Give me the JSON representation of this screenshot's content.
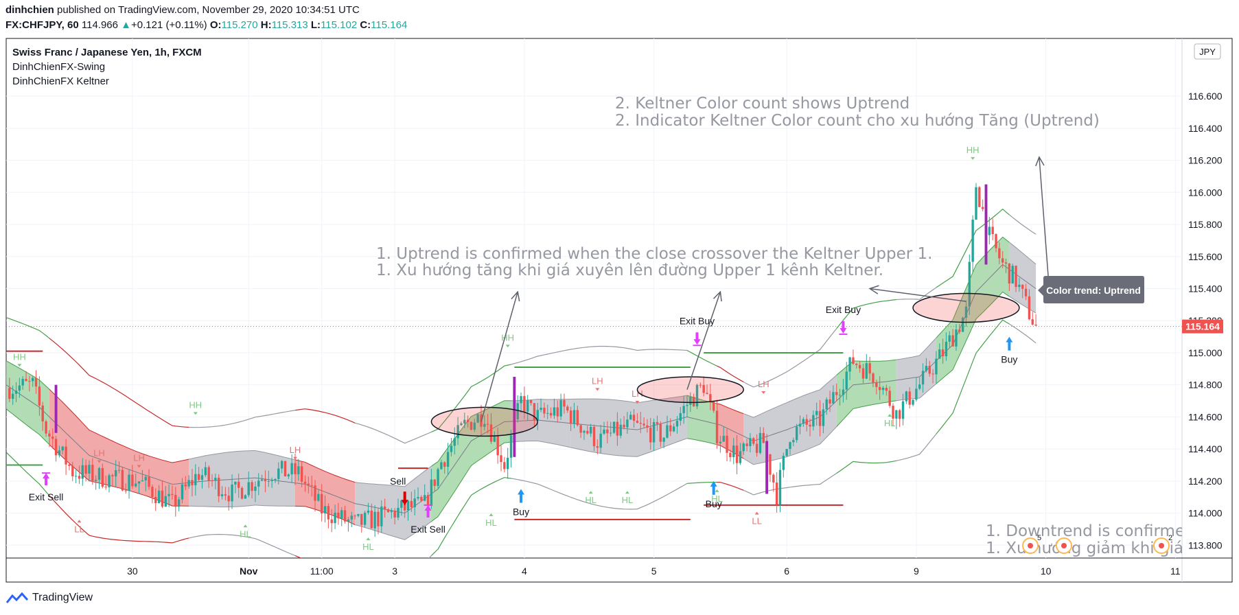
{
  "header": {
    "author": "dinhchien",
    "published": "published on TradingView.com, November 29, 2020 10:34:51 UTC",
    "symbol": "FX:CHFJPY, 60",
    "last": "114.966",
    "change_arrow": "▲",
    "change": "+0.121 (+0.11%)",
    "o_label": "O:",
    "o_val": "115.270",
    "h_label": "H:",
    "h_val": "115.313",
    "l_label": "L:",
    "l_val": "115.102",
    "c_label": "C:",
    "c_val": "115.164"
  },
  "legend": {
    "title": "Swiss Franc / Japanese Yen, 1h, FXCM",
    "ind1": "DinhChienFX-Swing",
    "ind2": "DinhChienFX Keltner"
  },
  "currency_badge": "JPY",
  "price_badge": "115.164",
  "tooltip": "Color trend: Uptrend",
  "annotations": {
    "a1_line1": "1. Uptrend is confirmed when the close crossover the Keltner Upper 1.",
    "a1_line2": "1. Xu hướng tăng khi giá xuyên lên đường Upper 1 kênh Keltner.",
    "a2_line1": "2. Keltner Color count shows Uptrend",
    "a2_line2": "2. Indicator Keltner Color count cho xu hướng Tăng (Uptrend)",
    "a3_line1": "1. Downtrend is confirme",
    "a3_line2": "1. Xu hướng giảm khi giá"
  },
  "footer": {
    "brand": "TradingView"
  },
  "colors": {
    "up": "#26a69a",
    "down": "#ef5350",
    "bull_fill": "#a5d6a7",
    "bear_fill": "#ef9a9a",
    "neutral_fill": "#c4c6cc",
    "keltner_mid": "#787b86",
    "signal": "#e040fb",
    "buy_arrow": "#2196f3",
    "exit_sell_arrow": "#e91e63",
    "level_green": "#43a047",
    "level_red": "#c62828"
  },
  "chart_data": {
    "type": "candlestick",
    "ylim": [
      113.72,
      116.96
    ],
    "y_ticks": [
      "113.800",
      "114.000",
      "114.200",
      "114.400",
      "114.600",
      "114.800",
      "115.000",
      "115.200",
      "115.400",
      "115.600",
      "115.800",
      "116.000",
      "116.200",
      "116.400",
      "116.600"
    ],
    "x_ticks": [
      {
        "label": "30",
        "bar": 38
      },
      {
        "label": "Nov",
        "bar": 73
      },
      {
        "label": "11:00",
        "bar": 95
      },
      {
        "label": "3",
        "bar": 117
      },
      {
        "label": "4",
        "bar": 156
      },
      {
        "label": "5",
        "bar": 195
      },
      {
        "label": "6",
        "bar": 235
      },
      {
        "label": "9",
        "bar": 274
      },
      {
        "label": "10",
        "bar": 313
      },
      {
        "label": "11",
        "bar": 352
      }
    ],
    "xlim": [
      0,
      354
    ],
    "bars": 310,
    "close_path": [
      [
        0,
        114.78
      ],
      [
        8,
        114.8
      ],
      [
        12,
        114.52
      ],
      [
        20,
        114.26
      ],
      [
        30,
        114.22
      ],
      [
        40,
        114.2
      ],
      [
        50,
        114.05
      ],
      [
        58,
        114.25
      ],
      [
        68,
        114.12
      ],
      [
        80,
        114.26
      ],
      [
        88,
        114.25
      ],
      [
        95,
        114.02
      ],
      [
        105,
        113.93
      ],
      [
        112,
        113.97
      ],
      [
        120,
        114.03
      ],
      [
        126,
        114.05
      ],
      [
        131,
        114.32
      ],
      [
        138,
        114.55
      ],
      [
        144,
        114.62
      ],
      [
        150,
        114.3
      ],
      [
        155,
        114.7
      ],
      [
        160,
        114.6
      ],
      [
        168,
        114.65
      ],
      [
        178,
        114.45
      ],
      [
        188,
        114.55
      ],
      [
        198,
        114.48
      ],
      [
        205,
        114.68
      ],
      [
        210,
        114.8
      ],
      [
        214,
        114.5
      ],
      [
        220,
        114.36
      ],
      [
        228,
        114.44
      ],
      [
        232,
        114.12
      ],
      [
        236,
        114.5
      ],
      [
        245,
        114.58
      ],
      [
        255,
        114.95
      ],
      [
        262,
        114.85
      ],
      [
        268,
        114.62
      ],
      [
        275,
        114.8
      ],
      [
        282,
        115.0
      ],
      [
        289,
        115.25
      ],
      [
        292,
        116.05
      ],
      [
        296,
        115.72
      ],
      [
        300,
        115.55
      ],
      [
        304,
        115.45
      ],
      [
        308,
        115.25
      ],
      [
        310,
        115.16
      ]
    ],
    "keltner_mid": [
      [
        0,
        114.8
      ],
      [
        10,
        114.66
      ],
      [
        25,
        114.36
      ],
      [
        40,
        114.25
      ],
      [
        50,
        114.18
      ],
      [
        60,
        114.2
      ],
      [
        75,
        114.22
      ],
      [
        90,
        114.18
      ],
      [
        105,
        114.06
      ],
      [
        120,
        114.0
      ],
      [
        130,
        114.15
      ],
      [
        140,
        114.45
      ],
      [
        150,
        114.57
      ],
      [
        160,
        114.58
      ],
      [
        175,
        114.55
      ],
      [
        190,
        114.52
      ],
      [
        205,
        114.6
      ],
      [
        215,
        114.55
      ],
      [
        225,
        114.45
      ],
      [
        235,
        114.52
      ],
      [
        245,
        114.6
      ],
      [
        255,
        114.8
      ],
      [
        265,
        114.82
      ],
      [
        275,
        114.85
      ],
      [
        285,
        115.05
      ],
      [
        292,
        115.38
      ],
      [
        300,
        115.55
      ],
      [
        310,
        115.4
      ]
    ],
    "keltner_u1_offset": 0.15,
    "keltner_u2_offset": 0.42,
    "trend_segments": [
      {
        "from": 0,
        "to": 13,
        "trend": "bull"
      },
      {
        "from": 13,
        "to": 55,
        "trend": "bear"
      },
      {
        "from": 55,
        "to": 87,
        "trend": "neutral"
      },
      {
        "from": 87,
        "to": 105,
        "trend": "bear"
      },
      {
        "from": 105,
        "to": 128,
        "trend": "neutral"
      },
      {
        "from": 128,
        "to": 152,
        "trend": "bull"
      },
      {
        "from": 152,
        "to": 170,
        "trend": "neutral"
      },
      {
        "from": 170,
        "to": 205,
        "trend": "neutral"
      },
      {
        "from": 205,
        "to": 214,
        "trend": "bull"
      },
      {
        "from": 214,
        "to": 222,
        "trend": "bear"
      },
      {
        "from": 222,
        "to": 250,
        "trend": "neutral"
      },
      {
        "from": 250,
        "to": 268,
        "trend": "bull"
      },
      {
        "from": 268,
        "to": 280,
        "trend": "neutral"
      },
      {
        "from": 280,
        "to": 302,
        "trend": "bull"
      },
      {
        "from": 302,
        "to": 310,
        "trend": "neutral"
      }
    ],
    "swing_labels": [
      {
        "text": "HH",
        "bar": 4,
        "price": 114.93
      },
      {
        "text": "LH",
        "bar": 28,
        "price": 114.33
      },
      {
        "text": "LH",
        "bar": 40,
        "price": 114.3
      },
      {
        "text": "HH",
        "bar": 57,
        "price": 114.63
      },
      {
        "text": "LL",
        "bar": 22,
        "price": 113.95
      },
      {
        "text": "HL",
        "bar": 72,
        "price": 113.92
      },
      {
        "text": "LH",
        "bar": 87,
        "price": 114.35
      },
      {
        "text": "HL",
        "bar": 109,
        "price": 113.84
      },
      {
        "text": "HL",
        "bar": 146,
        "price": 113.99
      },
      {
        "text": "HH",
        "bar": 151,
        "price": 115.05
      },
      {
        "text": "LH",
        "bar": 178,
        "price": 114.78
      },
      {
        "text": "LH",
        "bar": 190,
        "price": 114.7
      },
      {
        "text": "HL",
        "bar": 176,
        "price": 114.13
      },
      {
        "text": "HL",
        "bar": 187,
        "price": 114.13
      },
      {
        "text": "HL",
        "bar": 214,
        "price": 114.14
      },
      {
        "text": "LL",
        "bar": 226,
        "price": 114.0
      },
      {
        "text": "LH",
        "bar": 228,
        "price": 114.76
      },
      {
        "text": "HL",
        "bar": 266,
        "price": 114.61
      },
      {
        "text": "HH",
        "bar": 291,
        "price": 116.22
      }
    ],
    "signals": [
      {
        "text": "Exit Sell",
        "bar": 12,
        "price": 114.25,
        "kind": "exit-sell",
        "label_below": true
      },
      {
        "text": "Sell",
        "bar": 120,
        "price": 114.1,
        "kind": "sell",
        "label_above": true
      },
      {
        "text": "Exit Sell",
        "bar": 127,
        "price": 114.05,
        "kind": "exit-sell",
        "label_below": true
      },
      {
        "text": "Buy",
        "bar": 155,
        "price": 114.15,
        "kind": "buy",
        "label_below": true
      },
      {
        "text": "Exit Buy",
        "bar": 208,
        "price": 115.05,
        "kind": "exit-buy",
        "label_above": true
      },
      {
        "text": "Buy",
        "bar": 213,
        "price": 114.2,
        "kind": "buy",
        "label_below": true
      },
      {
        "text": "Exit Buy",
        "bar": 252,
        "price": 115.12,
        "kind": "exit-buy",
        "label_above": true
      },
      {
        "text": "Buy",
        "bar": 302,
        "price": 115.1,
        "kind": "buy",
        "label_below": true
      }
    ],
    "levels": [
      {
        "from": 0,
        "to": 11,
        "price": 115.01,
        "color": "red"
      },
      {
        "from": 0,
        "to": 11,
        "price": 114.3,
        "color": "green"
      },
      {
        "from": 118,
        "to": 127,
        "price": 114.28,
        "color": "red"
      },
      {
        "from": 153,
        "to": 206,
        "price": 114.91,
        "color": "green"
      },
      {
        "from": 153,
        "to": 206,
        "price": 113.96,
        "color": "red"
      },
      {
        "from": 210,
        "to": 252,
        "price": 115.0,
        "color": "green"
      },
      {
        "from": 210,
        "to": 252,
        "price": 114.05,
        "color": "red"
      }
    ]
  }
}
